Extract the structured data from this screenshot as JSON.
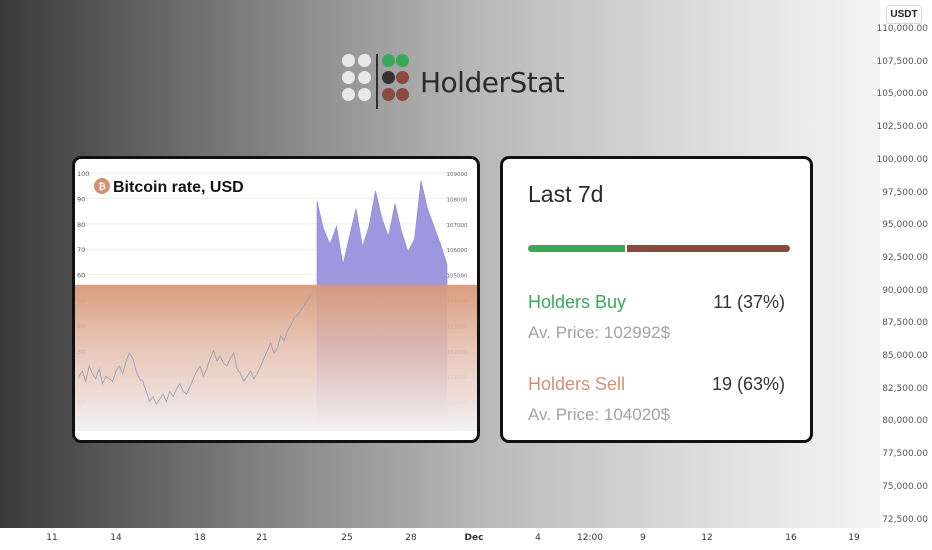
{
  "logo": {
    "text": "HolderStat",
    "dots": [
      {
        "color": "#e8e8e8"
      },
      {
        "color": "#e8e8e8"
      },
      {
        "color": "#3aa85a"
      },
      {
        "color": "#3aa85a"
      },
      {
        "color": "#e8e8e8"
      },
      {
        "color": "#e8e8e8"
      },
      {
        "color": "#333333"
      },
      {
        "color": "#8a4a40"
      },
      {
        "color": "#e8e8e8"
      },
      {
        "color": "#e8e8e8"
      },
      {
        "color": "#8a4a40"
      },
      {
        "color": "#8a4a40"
      }
    ]
  },
  "chart_card": {
    "coin_icon": "bitcoin-icon",
    "title": "Bitcoin rate, USD"
  },
  "chart_data": {
    "type": "area",
    "title": "Bitcoin rate, USD",
    "left_axis": {
      "ticks": [
        "100",
        "90",
        "80",
        "70",
        "60",
        "50",
        "40",
        "30",
        "20",
        "10",
        "0"
      ],
      "range": [
        0,
        100
      ]
    },
    "right_axis": {
      "ticks": [
        "109000",
        "108000",
        "107000",
        "106000",
        "105000",
        "104000",
        "103000",
        "102000",
        "101000",
        "100000",
        "99000"
      ],
      "range": [
        99000,
        109000
      ]
    },
    "series": [
      {
        "style": "line",
        "color": "#9aa3b5",
        "values": [
          20,
          22,
          18,
          24,
          21,
          19,
          23,
          17,
          20,
          19,
          18,
          22,
          24,
          21,
          26,
          29,
          27,
          22,
          19,
          18,
          14,
          10,
          12,
          9,
          11,
          13,
          10,
          14,
          12,
          15,
          17,
          14,
          13,
          16,
          19,
          22,
          24,
          20,
          23,
          27,
          30,
          26,
          28,
          25,
          24,
          27,
          29,
          23,
          21,
          18,
          20,
          22,
          19,
          21,
          24,
          27,
          30,
          33,
          29,
          31,
          36,
          34,
          38,
          40,
          43,
          44,
          46,
          48,
          50,
          52
        ]
      },
      {
        "style": "area",
        "color": "#9e97e0",
        "values": [
          107900,
          106800,
          106200,
          106900,
          105400,
          106500,
          107600,
          106100,
          106900,
          108300,
          107200,
          106500,
          107800,
          106700,
          105900,
          106400,
          108700,
          107600,
          106900,
          106200,
          105400
        ]
      }
    ],
    "band": {
      "top_value": 56,
      "color_top": "#d89878",
      "color_bottom": "#f3f1f4"
    }
  },
  "stats": {
    "period": "Last 7d",
    "buy_share": 0.37,
    "sell_share": 0.63,
    "buy": {
      "label": "Holders Buy",
      "value": "11 (37%)",
      "avg_price": "Av. Price: 102992$",
      "color": "#3aa85a"
    },
    "sell": {
      "label": "Holders Sell",
      "value": "19 (63%)",
      "avg_price": "Av. Price: 104020$",
      "color": "#d49072"
    }
  },
  "price_axis": {
    "currency": "USDT",
    "ticks": [
      "110,000.00",
      "107,500.00",
      "105,000.00",
      "102,500.00",
      "100,000.00",
      "97,500.00",
      "95,000.00",
      "92,500.00",
      "90,000.00",
      "87,500.00",
      "85,000.00",
      "82,500.00",
      "80,000.00",
      "77,500.00",
      "75,000.00",
      "72,500.00"
    ]
  },
  "time_axis": {
    "ticks": [
      {
        "label": "11",
        "bold": false
      },
      {
        "label": "14",
        "bold": false
      },
      {
        "label": "18",
        "bold": false
      },
      {
        "label": "21",
        "bold": false
      },
      {
        "label": "25",
        "bold": false
      },
      {
        "label": "28",
        "bold": false
      },
      {
        "label": "Dec",
        "bold": true
      },
      {
        "label": "4",
        "bold": false
      },
      {
        "label": "12:00",
        "bold": false
      },
      {
        "label": "9",
        "bold": false
      },
      {
        "label": "12",
        "bold": false
      },
      {
        "label": "16",
        "bold": false
      },
      {
        "label": "19",
        "bold": false
      }
    ]
  }
}
